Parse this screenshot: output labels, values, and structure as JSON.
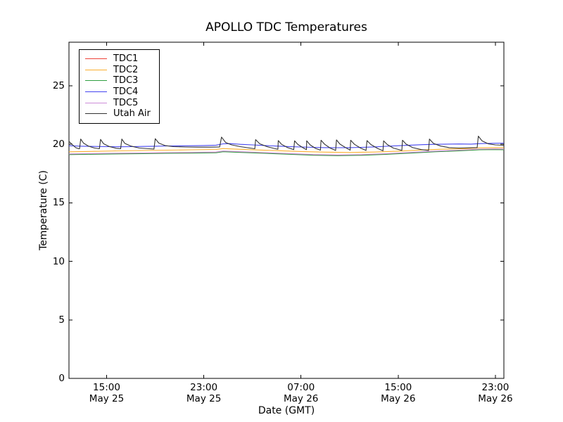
{
  "chart_data": {
    "type": "line",
    "title": "APOLLO TDC Temperatures",
    "xlabel": "Date (GMT)",
    "ylabel": "Temperature (C)",
    "x_unit": "hours since May 25 00:00 GMT",
    "xlim": [
      11.9,
      47.7
    ],
    "ylim": [
      0,
      28.73
    ],
    "grid": false,
    "legend_position": "upper left",
    "x_ticks": [
      {
        "t": 15,
        "time": "15:00",
        "date": "May 25"
      },
      {
        "t": 23,
        "time": "23:00",
        "date": "May 25"
      },
      {
        "t": 31,
        "time": "07:00",
        "date": "May 26"
      },
      {
        "t": 39,
        "time": "15:00",
        "date": "May 26"
      },
      {
        "t": 47,
        "time": "23:00",
        "date": "May 26"
      }
    ],
    "y_ticks": [
      0,
      5,
      10,
      15,
      20,
      25
    ],
    "axis_color": "#000000",
    "series": [
      {
        "name": "TDC1",
        "color": "#ee4238",
        "x": [
          11.9,
          14,
          16,
          18,
          20,
          22,
          24,
          24.6,
          26,
          28,
          30,
          32,
          34,
          36,
          38,
          40,
          42,
          44,
          45.7,
          47,
          47.7
        ],
        "y": [
          19.16,
          19.19,
          19.22,
          19.24,
          19.27,
          19.29,
          19.32,
          19.41,
          19.35,
          19.27,
          19.19,
          19.11,
          19.07,
          19.1,
          19.18,
          19.29,
          19.4,
          19.48,
          19.57,
          19.59,
          19.58
        ]
      },
      {
        "name": "TDC2",
        "color": "#fbaf2f",
        "x": [
          11.9,
          14,
          16,
          18,
          20,
          22,
          24,
          24.6,
          25.5,
          27,
          29,
          31,
          33,
          35,
          37,
          39,
          41,
          43,
          44.5,
          45.7,
          47,
          47.7
        ],
        "y": [
          19.36,
          19.4,
          19.44,
          19.47,
          19.5,
          19.53,
          19.56,
          19.64,
          19.6,
          19.54,
          19.46,
          19.39,
          19.33,
          19.3,
          19.34,
          19.42,
          19.52,
          19.6,
          19.63,
          19.7,
          19.72,
          19.71
        ]
      },
      {
        "name": "TDC3",
        "color": "#2f9e41",
        "x": [
          11.9,
          14,
          16,
          18,
          20,
          22,
          24,
          24.6,
          26,
          28,
          30,
          32,
          34,
          36,
          38,
          40,
          42,
          44,
          45.7,
          47,
          47.7
        ],
        "y": [
          19.12,
          19.15,
          19.18,
          19.2,
          19.23,
          19.25,
          19.28,
          19.37,
          19.31,
          19.23,
          19.15,
          19.07,
          19.03,
          19.06,
          19.14,
          19.25,
          19.36,
          19.44,
          19.53,
          19.55,
          19.54
        ]
      },
      {
        "name": "TDC4",
        "color": "#4545f0",
        "x": [
          11.9,
          13,
          14,
          15,
          16,
          17,
          18,
          19,
          20,
          21,
          22,
          23,
          24,
          24.6,
          25.2,
          26,
          27,
          28,
          29,
          30,
          31,
          32,
          33,
          34,
          35,
          36,
          37,
          38,
          39,
          40,
          41,
          42,
          43,
          44,
          45,
          45.7,
          46.3,
          47,
          47.7
        ],
        "y": [
          19.88,
          19.84,
          19.82,
          19.8,
          19.79,
          19.8,
          19.82,
          19.84,
          19.86,
          19.87,
          19.88,
          19.9,
          19.93,
          20.04,
          20.06,
          20.0,
          19.95,
          19.9,
          19.85,
          19.81,
          19.77,
          19.74,
          19.72,
          19.71,
          19.72,
          19.74,
          19.78,
          19.83,
          19.88,
          19.93,
          19.97,
          20.0,
          20.02,
          20.03,
          20.02,
          20.06,
          20.08,
          20.09,
          20.1
        ]
      },
      {
        "name": "TDC5",
        "color": "#cd8cd9",
        "x": [
          11.9,
          14,
          16,
          18,
          20,
          22,
          24,
          24.6,
          26,
          28,
          30,
          32,
          34,
          36,
          38,
          40,
          42,
          44,
          45.7,
          47,
          47.7
        ],
        "y": [
          19.18,
          19.21,
          19.24,
          19.26,
          19.29,
          19.31,
          19.34,
          19.43,
          19.37,
          19.29,
          19.21,
          19.13,
          19.09,
          19.12,
          19.2,
          19.31,
          19.42,
          19.5,
          19.59,
          19.61,
          19.6
        ]
      },
      {
        "name": "Utah Air",
        "color": "#333333",
        "x": [
          11.9,
          12.2,
          12.45,
          12.68,
          12.77,
          12.87,
          13.1,
          13.5,
          14.0,
          14.4,
          14.5,
          14.75,
          15.2,
          15.8,
          16.15,
          16.25,
          16.5,
          17.0,
          17.7,
          18.5,
          18.9,
          19.0,
          19.3,
          19.8,
          20.5,
          21.5,
          22.5,
          23.5,
          24.3,
          24.46,
          24.8,
          25.3,
          26.0,
          26.8,
          27.2,
          27.26,
          27.6,
          28.2,
          28.9,
          29.1,
          29.13,
          29.4,
          29.9,
          30.4,
          30.47,
          30.75,
          31.2,
          31.45,
          31.47,
          31.75,
          32.2,
          32.6,
          32.65,
          32.95,
          33.4,
          33.85,
          33.92,
          34.2,
          34.7,
          35.05,
          35.09,
          35.4,
          35.9,
          36.35,
          36.43,
          36.75,
          37.3,
          37.75,
          37.8,
          38.1,
          38.6,
          39.3,
          39.35,
          39.65,
          40.2,
          40.9,
          41.5,
          41.57,
          41.9,
          42.5,
          43.2,
          44.0,
          44.8,
          45.5,
          45.6,
          45.9,
          46.4,
          47.0,
          47.7
        ],
        "y": [
          20.25,
          19.95,
          19.72,
          19.63,
          19.62,
          20.45,
          20.1,
          19.85,
          19.68,
          19.62,
          20.42,
          20.05,
          19.82,
          19.66,
          19.62,
          20.45,
          20.08,
          19.85,
          19.68,
          19.62,
          19.6,
          20.48,
          20.1,
          19.9,
          19.8,
          19.77,
          19.76,
          19.76,
          19.78,
          20.62,
          20.15,
          19.95,
          19.8,
          19.68,
          19.62,
          20.4,
          20.05,
          19.8,
          19.62,
          19.58,
          20.32,
          20.0,
          19.72,
          19.55,
          20.3,
          19.98,
          19.68,
          19.55,
          20.3,
          19.95,
          19.65,
          19.5,
          20.35,
          20.0,
          19.68,
          19.48,
          20.38,
          20.02,
          19.7,
          19.5,
          20.35,
          20.0,
          19.68,
          19.48,
          20.32,
          19.98,
          19.65,
          19.45,
          20.3,
          19.98,
          19.68,
          19.48,
          20.35,
          20.02,
          19.72,
          19.55,
          19.48,
          20.45,
          20.08,
          19.85,
          19.72,
          19.68,
          19.7,
          19.72,
          20.7,
          20.3,
          20.05,
          19.95,
          19.92
        ]
      }
    ]
  }
}
